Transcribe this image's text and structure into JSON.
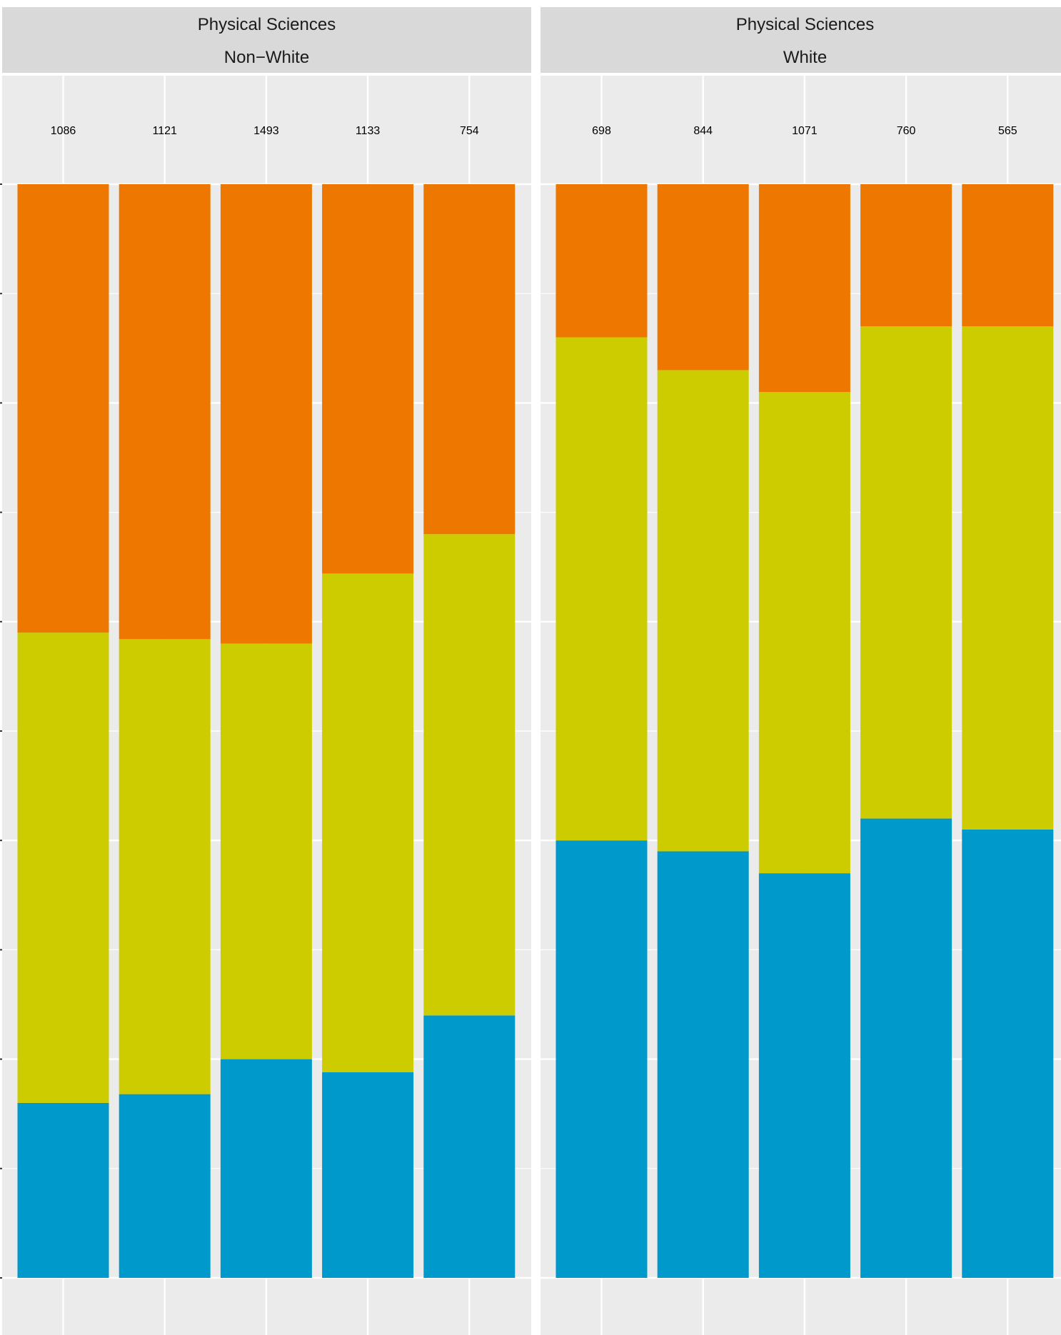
{
  "chart_data": {
    "type": "bar",
    "stacked": true,
    "normalized": true,
    "ylim": [
      0,
      1
    ],
    "grid": true,
    "colors": [
      "#0099CC",
      "#CCCC00",
      "#EE7700"
    ],
    "panels": [
      {
        "strip_top": "Physical Sciences",
        "strip_bottom": "Non−White",
        "counts": [
          "1086",
          "1121",
          "1493",
          "1133",
          "754"
        ],
        "segments": [
          [
            0.16,
            0.43,
            0.41
          ],
          [
            0.168,
            0.416,
            0.416
          ],
          [
            0.2,
            0.38,
            0.42
          ],
          [
            0.188,
            0.456,
            0.356
          ],
          [
            0.24,
            0.44,
            0.32
          ]
        ]
      },
      {
        "strip_top": "Physical Sciences",
        "strip_bottom": "White",
        "counts": [
          "698",
          "844",
          "1071",
          "760",
          "565"
        ],
        "segments": [
          [
            0.4,
            0.46,
            0.14
          ],
          [
            0.39,
            0.44,
            0.17
          ],
          [
            0.37,
            0.44,
            0.19
          ],
          [
            0.42,
            0.45,
            0.13
          ],
          [
            0.41,
            0.46,
            0.13
          ]
        ]
      }
    ]
  }
}
